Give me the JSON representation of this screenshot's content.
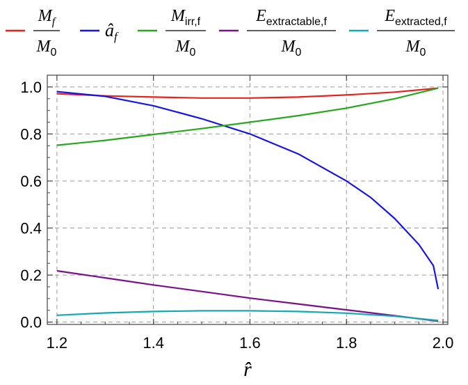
{
  "chart_data": {
    "type": "line",
    "xlabel": "r̂",
    "ylabel": "",
    "xlim": [
      1.18,
      2.01
    ],
    "ylim": [
      -0.01,
      1.05
    ],
    "xticks": [
      1.2,
      1.4,
      1.6,
      1.8,
      2.0
    ],
    "xtick_labels": [
      "1.2",
      "1.4",
      "1.6",
      "1.8",
      "2.0"
    ],
    "yticks": [
      0.0,
      0.2,
      0.4,
      0.6,
      0.8,
      1.0
    ],
    "ytick_labels": [
      "0.0",
      "0.2",
      "0.4",
      "0.6",
      "0.8",
      "1.0"
    ],
    "grid": true,
    "legend_position": "top",
    "series": [
      {
        "legend": {
          "numerator": "M",
          "numerator_sub": "f",
          "denominator": "M",
          "denominator_sub": "0"
        },
        "color": "#e8221b",
        "x": [
          1.2,
          1.3,
          1.4,
          1.5,
          1.6,
          1.7,
          1.8,
          1.9,
          1.99
        ],
        "y": [
          0.971,
          0.962,
          0.957,
          0.953,
          0.953,
          0.957,
          0.966,
          0.978,
          0.995
        ]
      },
      {
        "legend": {
          "numerator": "â",
          "numerator_sub": "f",
          "denominator": "",
          "denominator_sub": ""
        },
        "color": "#1515e6",
        "x": [
          1.2,
          1.3,
          1.4,
          1.5,
          1.6,
          1.7,
          1.8,
          1.85,
          1.9,
          1.95,
          1.98,
          1.99
        ],
        "y": [
          0.98,
          0.96,
          0.92,
          0.865,
          0.8,
          0.715,
          0.6,
          0.53,
          0.44,
          0.33,
          0.24,
          0.14
        ]
      },
      {
        "legend": {
          "numerator": "M",
          "numerator_sub": "irr,f",
          "denominator": "M",
          "denominator_sub": "0"
        },
        "color": "#25a81a",
        "x": [
          1.2,
          1.3,
          1.4,
          1.5,
          1.6,
          1.7,
          1.8,
          1.9,
          1.99
        ],
        "y": [
          0.752,
          0.773,
          0.798,
          0.823,
          0.85,
          0.878,
          0.91,
          0.95,
          0.995
        ]
      },
      {
        "legend": {
          "numerator": "E",
          "numerator_sub": "extractable,f",
          "denominator": "M",
          "denominator_sub": "0"
        },
        "color": "#7a0f8c",
        "x": [
          1.2,
          1.3,
          1.4,
          1.5,
          1.6,
          1.7,
          1.8,
          1.9,
          1.99
        ],
        "y": [
          0.218,
          0.188,
          0.158,
          0.13,
          0.102,
          0.077,
          0.052,
          0.027,
          0.004
        ]
      },
      {
        "legend": {
          "numerator": "E",
          "numerator_sub": "extracted,f",
          "denominator": "M",
          "denominator_sub": "0"
        },
        "color": "#13a8b5",
        "x": [
          1.2,
          1.3,
          1.4,
          1.5,
          1.6,
          1.7,
          1.8,
          1.9,
          1.99
        ],
        "y": [
          0.029,
          0.039,
          0.045,
          0.048,
          0.048,
          0.045,
          0.038,
          0.025,
          0.007
        ]
      }
    ]
  }
}
